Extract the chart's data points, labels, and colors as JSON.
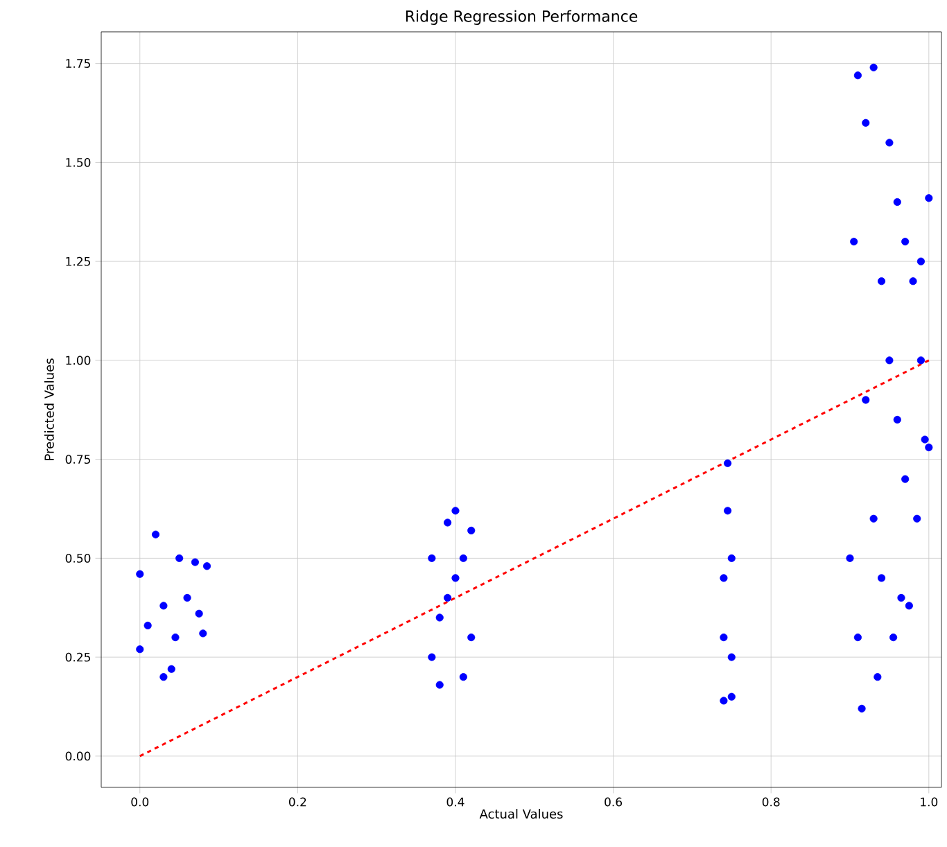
{
  "chart_data": {
    "type": "scatter",
    "title": "Ridge Regression Performance",
    "xlabel": "Actual Values",
    "ylabel": "Predicted Values",
    "xlim": [
      -0.049,
      1.016
    ],
    "ylim": [
      -0.079,
      1.83
    ],
    "xticks": [
      {
        "value": 0,
        "label": "0.0"
      },
      {
        "value": 0.2,
        "label": "0.2"
      },
      {
        "value": 0.4,
        "label": "0.4"
      },
      {
        "value": 0.6,
        "label": "0.6"
      },
      {
        "value": 0.8,
        "label": "0.8"
      },
      {
        "value": 1,
        "label": "1.0"
      }
    ],
    "yticks": [
      {
        "value": 0,
        "label": "0.00"
      },
      {
        "value": 0.25,
        "label": "0.25"
      },
      {
        "value": 0.5,
        "label": "0.50"
      },
      {
        "value": 0.75,
        "label": "0.75"
      },
      {
        "value": 1,
        "label": "1.00"
      },
      {
        "value": 1.25,
        "label": "1.25"
      },
      {
        "value": 1.5,
        "label": "1.50"
      },
      {
        "value": 1.75,
        "label": "1.75"
      }
    ],
    "grid": true,
    "marker": "circle",
    "series": [
      {
        "color": "#0000ff",
        "x": [
          0.0,
          0.0,
          0.02,
          0.03,
          0.04,
          0.05,
          0.07,
          0.08,
          0.085,
          0.03,
          0.06,
          0.01,
          0.075,
          0.045,
          0.37,
          0.37,
          0.38,
          0.39,
          0.4,
          0.41,
          0.42,
          0.42,
          0.39,
          0.4,
          0.38,
          0.41,
          0.74,
          0.745,
          0.75,
          0.74,
          0.75,
          0.745,
          0.74,
          0.75,
          0.9,
          0.905,
          0.91,
          0.915,
          0.92,
          0.93,
          0.935,
          0.94,
          0.95,
          0.955,
          0.96,
          0.965,
          0.97,
          0.975,
          0.98,
          0.985,
          0.99,
          0.995,
          1.0,
          1.0,
          0.92,
          0.93,
          0.95,
          0.97,
          0.99,
          0.91,
          0.96,
          0.94
        ],
        "values": [
          0.27,
          0.46,
          0.56,
          0.2,
          0.22,
          0.5,
          0.49,
          0.31,
          0.48,
          0.38,
          0.4,
          0.33,
          0.36,
          0.3,
          0.25,
          0.5,
          0.18,
          0.59,
          0.62,
          0.2,
          0.57,
          0.3,
          0.4,
          0.45,
          0.35,
          0.5,
          0.14,
          0.74,
          0.15,
          0.3,
          0.5,
          0.62,
          0.45,
          0.25,
          0.5,
          1.3,
          1.72,
          0.12,
          1.6,
          1.74,
          0.2,
          1.2,
          1.55,
          0.3,
          1.4,
          0.4,
          1.3,
          0.38,
          1.2,
          0.6,
          1.25,
          0.8,
          1.41,
          0.78,
          0.9,
          0.6,
          1.0,
          0.7,
          1.0,
          0.3,
          0.85,
          0.45
        ]
      },
      {
        "type": "line",
        "color": "#ff0000",
        "line_style": "dashed",
        "marker": "none",
        "x": [
          0,
          1
        ],
        "values": [
          0,
          1
        ]
      }
    ]
  }
}
